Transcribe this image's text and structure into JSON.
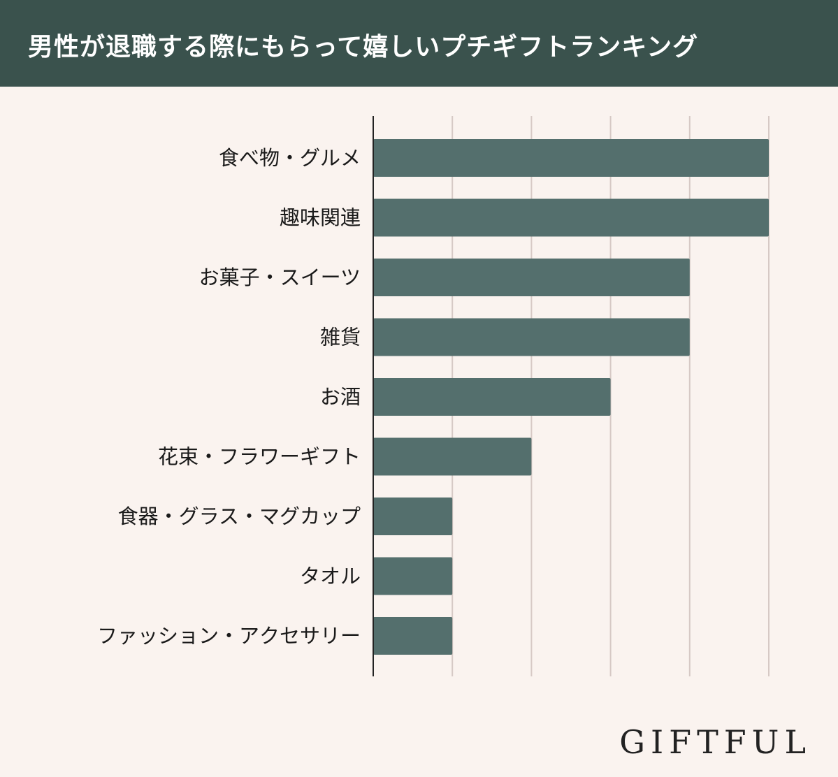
{
  "header": {
    "title": "男性が退職する際にもらって嬉しいプチギフトランキング"
  },
  "colors": {
    "header_bg": "#3a524d",
    "page_bg": "#faf3ef",
    "bar": "#546f6d",
    "grid": "#d6c9c5",
    "axis": "#222222"
  },
  "chart_data": {
    "type": "bar",
    "orientation": "horizontal",
    "title": "男性が退職する際にもらって嬉しいプチギフトランキング",
    "categories": [
      "食べ物・グルメ",
      "趣味関連",
      "お菓子・スイーツ",
      "雑貨",
      "お酒",
      "花束・フラワーギフト",
      "食器・グラス・マグカップ",
      "タオル",
      "ファッション・アクセサリー"
    ],
    "values": [
      5,
      5,
      4,
      4,
      3,
      2,
      1,
      1,
      1
    ],
    "xlim": [
      0,
      5
    ],
    "grid": true,
    "xlabel": "",
    "ylabel": ""
  },
  "brand": {
    "logo_text": "GIFTFUL"
  }
}
